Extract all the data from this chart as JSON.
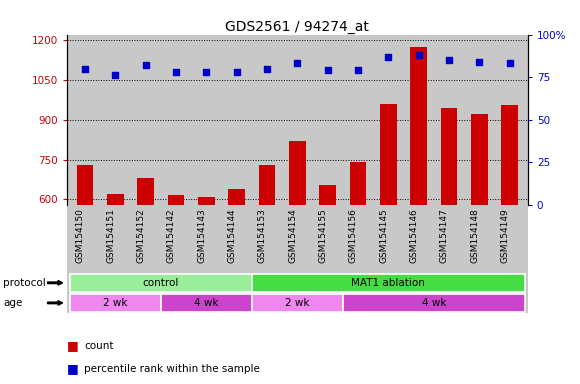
{
  "title": "GDS2561 / 94274_at",
  "samples": [
    "GSM154150",
    "GSM154151",
    "GSM154152",
    "GSM154142",
    "GSM154143",
    "GSM154144",
    "GSM154153",
    "GSM154154",
    "GSM154155",
    "GSM154156",
    "GSM154145",
    "GSM154146",
    "GSM154147",
    "GSM154148",
    "GSM154149"
  ],
  "counts": [
    730,
    622,
    680,
    615,
    608,
    640,
    730,
    820,
    655,
    740,
    960,
    1175,
    945,
    920,
    955
  ],
  "percentile": [
    80,
    76,
    82,
    78,
    78,
    78,
    80,
    83,
    79,
    79,
    87,
    88,
    85,
    84,
    83
  ],
  "ylim_left": [
    580,
    1220
  ],
  "ylim_right": [
    0,
    100
  ],
  "yticks_left": [
    600,
    750,
    900,
    1050,
    1200
  ],
  "yticks_right": [
    0,
    25,
    50,
    75,
    100
  ],
  "bar_color": "#cc0000",
  "dot_color": "#0000cc",
  "bg_color": "#c8c8c8",
  "protocol_groups": [
    {
      "label": "control",
      "start": 0,
      "end": 6,
      "color": "#99ee99"
    },
    {
      "label": "MAT1 ablation",
      "start": 6,
      "end": 15,
      "color": "#44dd44"
    }
  ],
  "age_groups": [
    {
      "label": "2 wk",
      "start": 0,
      "end": 3,
      "color": "#ee88ee"
    },
    {
      "label": "4 wk",
      "start": 3,
      "end": 6,
      "color": "#cc44cc"
    },
    {
      "label": "2 wk",
      "start": 6,
      "end": 9,
      "color": "#ee88ee"
    },
    {
      "label": "4 wk",
      "start": 9,
      "end": 15,
      "color": "#cc44cc"
    }
  ],
  "legend_count_color": "#cc0000",
  "legend_dot_color": "#0000cc",
  "title_fontsize": 10,
  "tick_fontsize": 7.5,
  "label_fontsize": 8
}
